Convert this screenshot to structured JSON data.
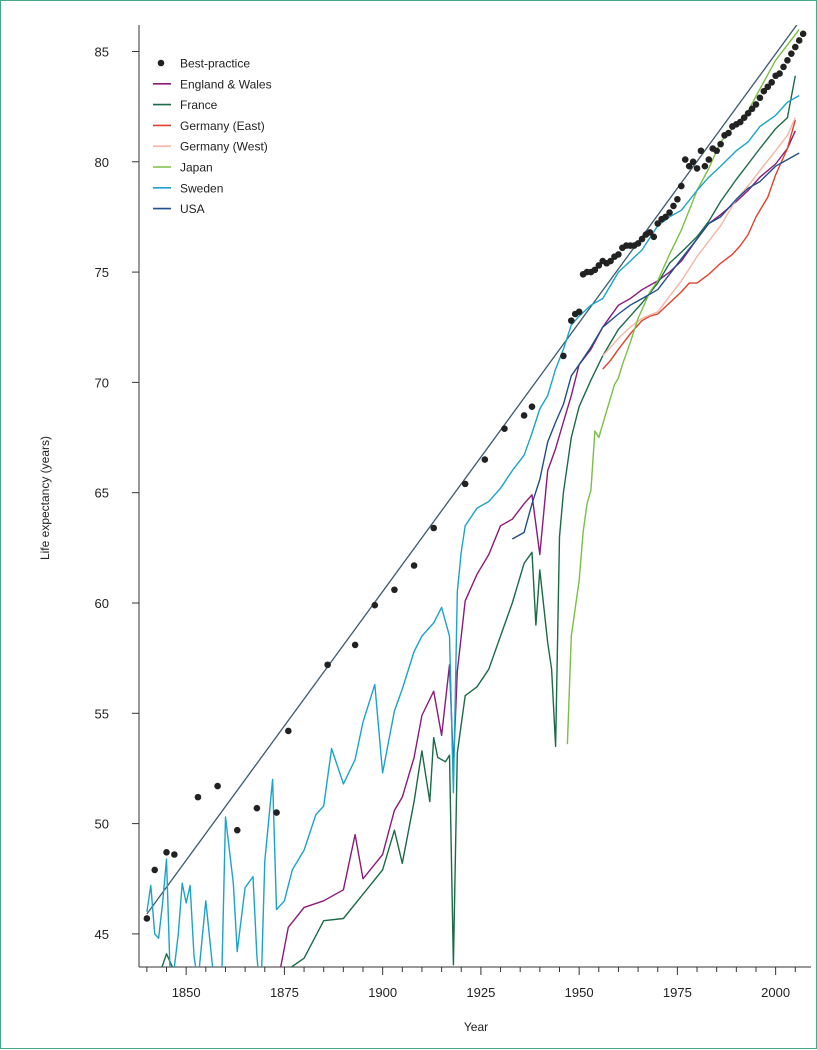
{
  "colors": {
    "frame": "#4aa88a",
    "axis": "#333333",
    "best_practice": "#222222",
    "trend": "#3d5a6e"
  },
  "chart_data": {
    "type": "line",
    "title": "",
    "xlabel": "Year",
    "ylabel": "Life expectancy (years)",
    "xlim": [
      1838,
      2009
    ],
    "ylim": [
      43.5,
      86.2
    ],
    "xticks": [
      1850,
      1875,
      1900,
      1925,
      1950,
      1975,
      2000
    ],
    "yticks": [
      45,
      50,
      55,
      60,
      65,
      70,
      75,
      80,
      85
    ],
    "grid": false,
    "legend_position": "top-left",
    "trend_line": {
      "x": [
        1840,
        2007
      ],
      "y": [
        45.9,
        86.6
      ]
    },
    "scatter": {
      "name": "Best-practice",
      "color": "#222222",
      "points": [
        [
          1840,
          45.7
        ],
        [
          1842,
          47.9
        ],
        [
          1845,
          48.7
        ],
        [
          1847,
          48.6
        ],
        [
          1853,
          51.2
        ],
        [
          1858,
          51.7
        ],
        [
          1863,
          49.7
        ],
        [
          1868,
          50.7
        ],
        [
          1873,
          50.5
        ],
        [
          1876,
          54.2
        ],
        [
          1886,
          57.2
        ],
        [
          1893,
          58.1
        ],
        [
          1898,
          59.9
        ],
        [
          1903,
          60.6
        ],
        [
          1908,
          61.7
        ],
        [
          1913,
          63.4
        ],
        [
          1921,
          65.4
        ],
        [
          1926,
          66.5
        ],
        [
          1931,
          67.9
        ],
        [
          1936,
          68.5
        ],
        [
          1938,
          68.9
        ],
        [
          1946,
          71.2
        ],
        [
          1948,
          72.8
        ],
        [
          1949,
          73.1
        ],
        [
          1950,
          73.2
        ],
        [
          1951,
          74.9
        ],
        [
          1952,
          75.0
        ],
        [
          1953,
          75.0
        ],
        [
          1954,
          75.1
        ],
        [
          1955,
          75.3
        ],
        [
          1956,
          75.5
        ],
        [
          1957,
          75.4
        ],
        [
          1958,
          75.5
        ],
        [
          1959,
          75.7
        ],
        [
          1960,
          75.8
        ],
        [
          1961,
          76.1
        ],
        [
          1962,
          76.2
        ],
        [
          1963,
          76.2
        ],
        [
          1964,
          76.2
        ],
        [
          1965,
          76.3
        ],
        [
          1966,
          76.5
        ],
        [
          1967,
          76.7
        ],
        [
          1968,
          76.8
        ],
        [
          1969,
          76.6
        ],
        [
          1970,
          77.2
        ],
        [
          1971,
          77.4
        ],
        [
          1972,
          77.5
        ],
        [
          1973,
          77.7
        ],
        [
          1974,
          78.0
        ],
        [
          1975,
          78.3
        ],
        [
          1976,
          78.9
        ],
        [
          1977,
          80.1
        ],
        [
          1978,
          79.8
        ],
        [
          1979,
          80.0
        ],
        [
          1980,
          79.7
        ],
        [
          1981,
          80.5
        ],
        [
          1982,
          79.8
        ],
        [
          1983,
          80.1
        ],
        [
          1984,
          80.6
        ],
        [
          1985,
          80.5
        ],
        [
          1986,
          80.8
        ],
        [
          1987,
          81.2
        ],
        [
          1988,
          81.3
        ],
        [
          1989,
          81.6
        ],
        [
          1990,
          81.7
        ],
        [
          1991,
          81.8
        ],
        [
          1992,
          82.0
        ],
        [
          1993,
          82.2
        ],
        [
          1994,
          82.4
        ],
        [
          1995,
          82.6
        ],
        [
          1996,
          82.9
        ],
        [
          1997,
          83.2
        ],
        [
          1998,
          83.4
        ],
        [
          1999,
          83.6
        ],
        [
          2000,
          83.9
        ],
        [
          2001,
          84.0
        ],
        [
          2002,
          84.3
        ],
        [
          2003,
          84.6
        ],
        [
          2004,
          84.9
        ],
        [
          2005,
          85.2
        ],
        [
          2006,
          85.5
        ],
        [
          2007,
          85.8
        ]
      ]
    },
    "series": [
      {
        "name": "England & Wales",
        "color": "#8b1a7a",
        "x": [
          1841,
          1845,
          1850,
          1855,
          1860,
          1865,
          1870,
          1873,
          1876,
          1880,
          1885,
          1890,
          1893,
          1895,
          1900,
          1903,
          1905,
          1908,
          1910,
          1913,
          1915,
          1917,
          1918,
          1919,
          1921,
          1924,
          1927,
          1930,
          1933,
          1936,
          1938,
          1940,
          1942,
          1944,
          1946,
          1948,
          1950,
          1953,
          1956,
          1960,
          1963,
          1966,
          1970,
          1973,
          1976,
          1980,
          1983,
          1986,
          1990,
          1993,
          1996,
          2000,
          2003,
          2005
        ],
        "y": [
          42.5,
          43.4,
          42.0,
          41.8,
          43.2,
          42.3,
          41.9,
          42.5,
          45.3,
          46.2,
          46.5,
          47.0,
          49.5,
          47.5,
          48.6,
          50.6,
          51.2,
          53.0,
          54.9,
          56.0,
          54.0,
          57.2,
          52.6,
          56.9,
          60.1,
          61.3,
          62.2,
          63.5,
          63.8,
          64.5,
          64.9,
          62.2,
          66.0,
          67.0,
          68.2,
          69.4,
          70.8,
          71.5,
          72.5,
          73.5,
          73.8,
          74.2,
          74.6,
          75.0,
          75.5,
          76.5,
          77.2,
          77.6,
          78.2,
          78.7,
          79.3,
          79.9,
          80.6,
          81.4
        ]
      },
      {
        "name": "France",
        "color": "#1a6b47",
        "x": [
          1841,
          1845,
          1850,
          1855,
          1860,
          1865,
          1870,
          1871,
          1873,
          1876,
          1880,
          1885,
          1890,
          1895,
          1900,
          1903,
          1905,
          1908,
          1910,
          1912,
          1913,
          1914,
          1916,
          1917,
          1918,
          1919,
          1921,
          1924,
          1927,
          1930,
          1933,
          1936,
          1938,
          1939,
          1940,
          1942,
          1943,
          1944,
          1945,
          1946,
          1948,
          1950,
          1953,
          1956,
          1960,
          1963,
          1966,
          1970,
          1973,
          1976,
          1980,
          1983,
          1986,
          1990,
          1993,
          1996,
          2000,
          2003,
          2005
        ],
        "y": [
          42.0,
          44.1,
          42.1,
          42.6,
          42.8,
          42.5,
          41.4,
          40.0,
          42.3,
          43.4,
          43.9,
          45.6,
          45.7,
          46.8,
          47.9,
          49.7,
          48.2,
          51.0,
          53.3,
          51.0,
          53.9,
          53.0,
          52.8,
          53.1,
          43.6,
          53.2,
          55.8,
          56.2,
          57.0,
          58.5,
          60.0,
          61.8,
          62.3,
          59.0,
          61.5,
          58.2,
          57.0,
          53.5,
          63.0,
          65.0,
          67.5,
          68.9,
          70.1,
          71.2,
          72.4,
          73.0,
          73.6,
          74.5,
          75.4,
          75.9,
          76.6,
          77.3,
          78.2,
          79.2,
          79.9,
          80.6,
          81.5,
          82.0,
          83.9
        ]
      },
      {
        "name": "Germany (East)",
        "color": "#e0412b",
        "x": [
          1956,
          1958,
          1960,
          1963,
          1966,
          1968,
          1970,
          1973,
          1976,
          1978,
          1980,
          1983,
          1986,
          1989,
          1991,
          1993,
          1995,
          1998,
          2000,
          2003,
          2005
        ],
        "y": [
          70.6,
          71.0,
          71.5,
          72.2,
          72.8,
          73.0,
          73.1,
          73.6,
          74.1,
          74.5,
          74.5,
          74.9,
          75.4,
          75.8,
          76.2,
          76.7,
          77.5,
          78.4,
          79.4,
          80.6,
          81.9
        ]
      },
      {
        "name": "Germany (West)",
        "color": "#f3b7a4",
        "x": [
          1956,
          1958,
          1960,
          1963,
          1966,
          1970,
          1973,
          1976,
          1980,
          1983,
          1986,
          1990,
          1993,
          1996,
          2000,
          2003,
          2005
        ],
        "y": [
          71.2,
          71.6,
          72.0,
          72.5,
          72.9,
          73.2,
          73.9,
          74.6,
          75.7,
          76.4,
          77.1,
          78.3,
          78.9,
          79.6,
          80.5,
          81.2,
          82.0
        ]
      },
      {
        "name": "Japan",
        "color": "#7bbf44",
        "x": [
          1947,
          1948,
          1950,
          1951,
          1952,
          1953,
          1954,
          1955,
          1957,
          1959,
          1960,
          1961,
          1963,
          1965,
          1968,
          1970,
          1973,
          1976,
          1980,
          1983,
          1986,
          1990,
          1993,
          1996,
          2000,
          2003,
          2006
        ],
        "y": [
          53.6,
          58.5,
          61.0,
          63.2,
          64.5,
          65.1,
          67.8,
          67.5,
          68.7,
          69.9,
          70.2,
          70.8,
          71.8,
          72.9,
          74.1,
          74.6,
          75.8,
          76.9,
          78.7,
          79.7,
          80.9,
          81.7,
          82.3,
          83.3,
          84.6,
          85.3,
          86.0
        ]
      },
      {
        "name": "Sweden",
        "color": "#1aa4c8",
        "x": [
          1840,
          1841,
          1842,
          1843,
          1844,
          1845,
          1846,
          1847,
          1848,
          1849,
          1850,
          1851,
          1852,
          1853,
          1855,
          1857,
          1858,
          1859,
          1860,
          1862,
          1863,
          1865,
          1867,
          1868,
          1869,
          1870,
          1872,
          1873,
          1875,
          1877,
          1880,
          1883,
          1885,
          1887,
          1890,
          1893,
          1895,
          1898,
          1900,
          1903,
          1905,
          1908,
          1910,
          1913,
          1915,
          1917,
          1918,
          1919,
          1920,
          1921,
          1924,
          1927,
          1930,
          1933,
          1936,
          1938,
          1940,
          1942,
          1944,
          1946,
          1948,
          1950,
          1953,
          1956,
          1960,
          1963,
          1966,
          1970,
          1973,
          1976,
          1980,
          1983,
          1986,
          1990,
          1993,
          1996,
          2000,
          2003,
          2006
        ],
        "y": [
          46.0,
          47.2,
          45.0,
          44.8,
          46.4,
          48.4,
          42.8,
          43.5,
          45.0,
          47.3,
          46.4,
          47.2,
          44.0,
          42.8,
          46.5,
          43.0,
          40.5,
          42.5,
          50.3,
          47.3,
          44.2,
          47.1,
          47.6,
          44.0,
          42.0,
          48.3,
          52.0,
          46.1,
          46.5,
          47.9,
          48.8,
          50.4,
          50.8,
          53.4,
          51.8,
          52.9,
          54.6,
          56.3,
          52.3,
          55.1,
          56.1,
          57.8,
          58.5,
          59.1,
          59.8,
          58.5,
          51.4,
          60.5,
          62.3,
          63.5,
          64.3,
          64.6,
          65.2,
          66.0,
          66.7,
          67.7,
          68.8,
          69.4,
          70.6,
          71.5,
          72.6,
          73.0,
          73.5,
          73.8,
          75.0,
          75.5,
          76.0,
          77.1,
          77.5,
          77.8,
          78.7,
          79.3,
          79.8,
          80.5,
          80.9,
          81.6,
          82.1,
          82.7,
          83.0
        ]
      },
      {
        "name": "USA",
        "color": "#1f4f8c",
        "x": [
          1933,
          1936,
          1938,
          1940,
          1942,
          1944,
          1946,
          1948,
          1950,
          1953,
          1956,
          1960,
          1963,
          1966,
          1970,
          1973,
          1976,
          1980,
          1983,
          1986,
          1990,
          1993,
          1996,
          2000,
          2003,
          2006
        ],
        "y": [
          62.9,
          63.2,
          64.5,
          65.6,
          67.3,
          68.2,
          69.0,
          70.3,
          70.8,
          71.6,
          72.5,
          73.1,
          73.5,
          73.8,
          74.2,
          74.9,
          75.6,
          76.5,
          77.2,
          77.5,
          78.3,
          78.8,
          79.1,
          79.8,
          80.1,
          80.4
        ]
      }
    ]
  }
}
